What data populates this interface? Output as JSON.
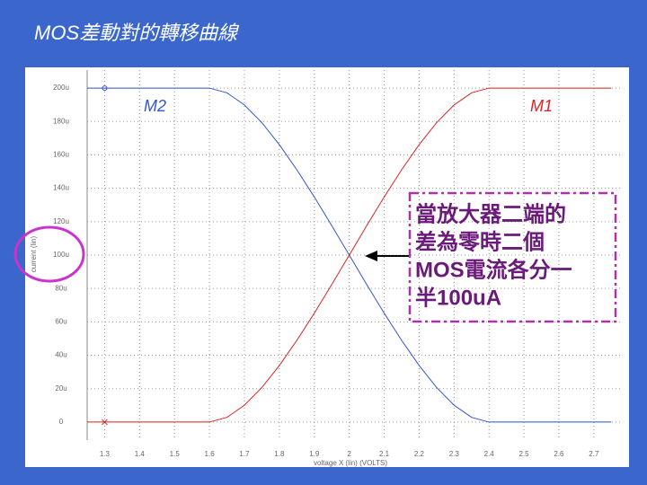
{
  "title": "MOS差動對的轉移曲線",
  "annotation": [
    "當放大器二端的",
    "差為零時二個",
    "MOS電流各分一",
    "半100uA"
  ],
  "chart_data": {
    "type": "line",
    "xlabel": "voltage X (lin) (VOLTS)",
    "ylabel": "current (lin)",
    "x": [
      1.25,
      1.3,
      1.35,
      1.4,
      1.45,
      1.5,
      1.55,
      1.6,
      1.65,
      1.7,
      1.75,
      1.8,
      1.85,
      1.9,
      1.95,
      2.0,
      2.05,
      2.1,
      2.15,
      2.2,
      2.25,
      2.3,
      2.35,
      2.4,
      2.45,
      2.5,
      2.55,
      2.6,
      2.65,
      2.7,
      2.75
    ],
    "series": [
      {
        "name": "M2",
        "color": "#3355cc",
        "values": [
          200,
          200,
          200,
          200,
          200,
          200,
          200,
          200,
          197.2,
          189.9,
          179.3,
          166.1,
          151.1,
          134.8,
          117.6,
          100,
          82.4,
          65.2,
          48.9,
          33.9,
          20.7,
          10.1,
          2.8,
          0,
          0,
          0,
          0,
          0,
          0,
          0,
          0
        ]
      },
      {
        "name": "M1",
        "color": "#dd2222",
        "values": [
          0,
          0,
          0,
          0,
          0,
          0,
          0,
          0,
          2.8,
          10.1,
          20.7,
          33.9,
          48.9,
          65.2,
          82.4,
          100,
          117.6,
          134.8,
          151.1,
          166.1,
          179.3,
          189.9,
          197.2,
          200,
          200,
          200,
          200,
          200,
          200,
          200,
          200
        ]
      }
    ],
    "xlim": [
      1.25,
      2.775
    ],
    "ylim": [
      -10.8,
      210.8
    ],
    "xticks": [
      1.3,
      1.4,
      1.5,
      1.6,
      1.7,
      1.8,
      1.9,
      2,
      2.1,
      2.2,
      2.3,
      2.4,
      2.5,
      2.6,
      2.7
    ],
    "yticks": [
      0,
      {
        "value": 20,
        "label": "20u"
      },
      {
        "value": 40,
        "label": "40u"
      },
      {
        "value": 60,
        "label": "60u"
      },
      {
        "value": 80,
        "label": "80u"
      },
      {
        "value": 100,
        "label": "100u"
      },
      {
        "value": 120,
        "label": "120u"
      },
      {
        "value": 140,
        "label": "140u"
      },
      {
        "value": 160,
        "label": "160u"
      },
      {
        "value": 180,
        "label": "180u"
      },
      {
        "value": 200,
        "label": "200u"
      }
    ],
    "grid": true
  }
}
